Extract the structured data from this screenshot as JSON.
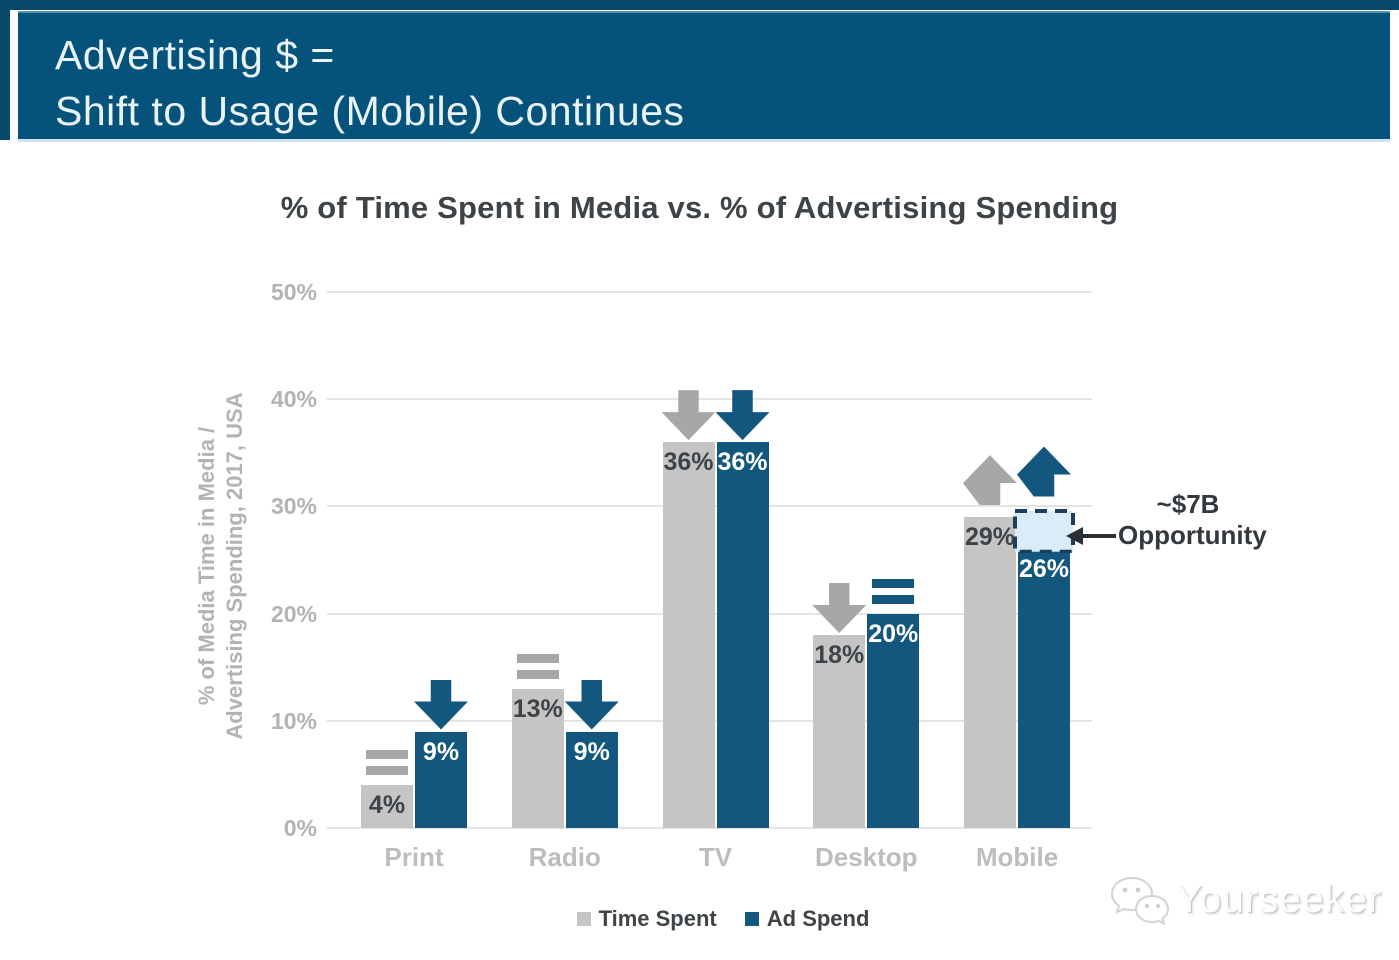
{
  "header": {
    "line1": "Advertising $ =",
    "line2": "Shift to Usage (Mobile) Continues"
  },
  "chart_data": {
    "type": "bar",
    "title": "% of Time Spent in Media vs. % of Advertising Spending",
    "ylabel_line1": "% of Media Time in Media /",
    "ylabel_line2": "Advertising Spending, 2017, USA",
    "ylim": [
      0,
      50
    ],
    "ytick_values": [
      0,
      10,
      20,
      30,
      40,
      50
    ],
    "ytick_labels": [
      "0%",
      "10%",
      "20%",
      "30%",
      "40%",
      "50%"
    ],
    "grid": true,
    "legend_position": "bottom",
    "categories": [
      "Print",
      "Radio",
      "TV",
      "Desktop",
      "Mobile"
    ],
    "series": [
      {
        "name": "Time Spent",
        "color": "#c5c5c5",
        "label_color": "#3e4347",
        "indicator_color": "#a7a7a7",
        "values": [
          4,
          13,
          36,
          18,
          29
        ],
        "labels": [
          "4%",
          "13%",
          "36%",
          "18%",
          "29%"
        ],
        "indicators": [
          "equal",
          "equal",
          "down",
          "down",
          "up"
        ]
      },
      {
        "name": "Ad Spend",
        "color": "#14577e",
        "label_color": "#ffffff",
        "indicator_color": "#14577e",
        "values": [
          9,
          9,
          36,
          20,
          26
        ],
        "labels": [
          "9%",
          "9%",
          "36%",
          "20%",
          "26%"
        ],
        "indicators": [
          "down",
          "down",
          "down",
          "equal",
          "up"
        ]
      }
    ],
    "annotation": {
      "line1": "~$7B",
      "line2": "Opportunity",
      "target_category": "Mobile",
      "target_series": "Ad Spend",
      "gap_from": 26,
      "gap_to": 29.8,
      "box_fill": "#d9ecf8",
      "box_border": "#1c3e5c"
    }
  },
  "watermark": {
    "text": "Yourseeker"
  },
  "colors": {
    "banner": "#05537b",
    "bar_blue": "#14577e",
    "bar_gray": "#c5c5c5"
  }
}
